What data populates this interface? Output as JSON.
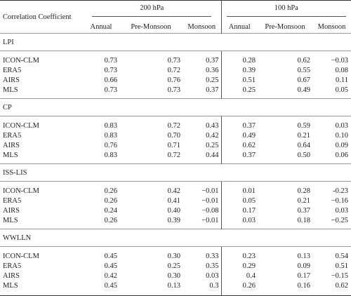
{
  "table": {
    "corner_label": "Correlation Coefficient",
    "levels": [
      "200 hPa",
      "100 hPa"
    ],
    "periods": [
      "Annual",
      "Pre-Monsoon",
      "Monsoon",
      "Annual",
      "Pre-Monsoon",
      "Monsoon"
    ],
    "sections": [
      {
        "name": "LPI",
        "rows": [
          {
            "label": "ICON-CLM",
            "values": [
              "0.73",
              "0.73",
              "0.37",
              "0.28",
              "0.62",
              "−0.03"
            ]
          },
          {
            "label": "ERA5",
            "values": [
              "0.73",
              "0.72",
              "0.36",
              "0.39",
              "0.55",
              "0.08"
            ]
          },
          {
            "label": "AIRS",
            "values": [
              "0.66",
              "0.76",
              "0.25",
              "0.51",
              "0.67",
              "0.11"
            ]
          },
          {
            "label": "MLS",
            "values": [
              "0.73",
              "0.73",
              "0.37",
              "0.25",
              "0.49",
              "0.05"
            ]
          }
        ]
      },
      {
        "name": "CP",
        "rows": [
          {
            "label": "ICON-CLM",
            "values": [
              "0.83",
              "0.72",
              "0.43",
              "0.37",
              "0.59",
              "0.03"
            ]
          },
          {
            "label": "ERA5",
            "values": [
              "0.83",
              "0.70",
              "0.42",
              "0.49",
              "0.21",
              "0.10"
            ]
          },
          {
            "label": "AIRS",
            "values": [
              "0.76",
              "0.71",
              "0.25",
              "0.62",
              "0.64",
              "0.09"
            ]
          },
          {
            "label": "MLS",
            "values": [
              "0.83",
              "0.72",
              "0.44",
              "0.37",
              "0.50",
              "0.06"
            ]
          }
        ]
      },
      {
        "name": "ISS-LIS",
        "rows": [
          {
            "label": "ICON-CLM",
            "values": [
              "0.26",
              "0.42",
              "−0.01",
              "0.01",
              "0.28",
              "-0.23"
            ]
          },
          {
            "label": "ERA5",
            "values": [
              "0.26",
              "0.41",
              "−0.01",
              "0.05",
              "0.21",
              "−0.16"
            ]
          },
          {
            "label": "AIRS",
            "values": [
              "0.24",
              "0.40",
              "−0.08",
              "0.17",
              "0.37",
              "0.03"
            ]
          },
          {
            "label": "MLS",
            "values": [
              "0.26",
              "0.39",
              "−0.01",
              "0.03",
              "0.18",
              "−0.25"
            ]
          }
        ]
      },
      {
        "name": "WWLLN",
        "rows": [
          {
            "label": "ICON-CLM",
            "values": [
              "0.45",
              "0.30",
              "0.33",
              "0.23",
              "0.13",
              "0.54"
            ]
          },
          {
            "label": "ERA5",
            "values": [
              "0.45",
              "0.25",
              "0.35",
              "0.29",
              "0.09",
              "0.51"
            ]
          },
          {
            "label": "AIRS",
            "values": [
              "0.42",
              "0.30",
              "0.03",
              "0.4",
              "0.17",
              "−0.15"
            ]
          },
          {
            "label": "MLS",
            "values": [
              "0.45",
              "0.13",
              "0.3",
              "0.26",
              "0.16",
              "0.62"
            ]
          }
        ]
      }
    ]
  }
}
